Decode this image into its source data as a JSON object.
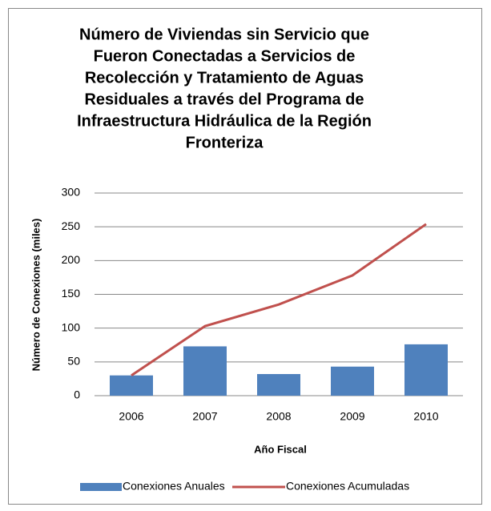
{
  "chart_data": {
    "type": "bar_line",
    "title": [
      "Número de Viviendas sin Servicio que",
      "Fueron Conectadas a Servicios de",
      "Recolección y Tratamiento de Aguas",
      "Residuales a través del Programa de",
      "Infraestructura Hidráulica de la Región",
      "Fronteriza"
    ],
    "x_label": "Año Fiscal",
    "y_label": "Número de Conexiones (miles)",
    "categories": [
      "2006",
      "2007",
      "2008",
      "2009",
      "2010"
    ],
    "series": [
      {
        "name": "Conexiones Anuales",
        "type": "bar",
        "color": "#4f81bd",
        "values": [
          30,
          73,
          32,
          43,
          76
        ]
      },
      {
        "name": "Conexiones Acumuladas",
        "type": "line",
        "color": "#c0504d",
        "values": [
          30,
          103,
          135,
          178,
          254
        ]
      }
    ],
    "ylim": [
      0,
      300
    ],
    "yticks": [
      0,
      50,
      100,
      150,
      200,
      250,
      300
    ],
    "grid": true,
    "legend": "bottom"
  }
}
